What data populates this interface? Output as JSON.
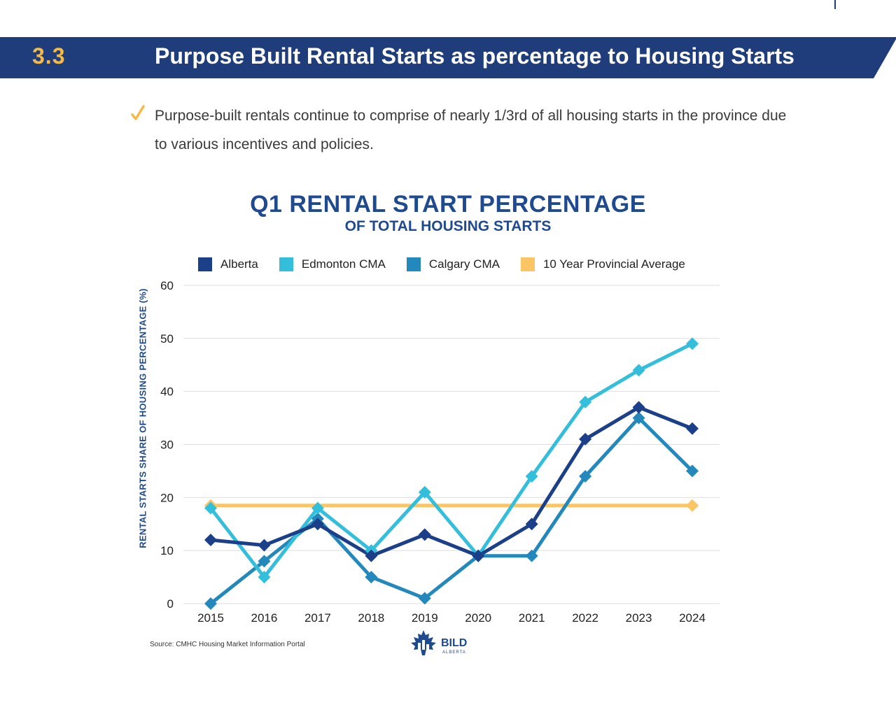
{
  "header": {
    "section_number": "3.3",
    "title": "Purpose Built Rental Starts as percentage to Housing Starts"
  },
  "bullet": {
    "text": "Purpose-built rentals continue to comprise of nearly 1/3rd of all housing starts in the province due to various incentives and policies."
  },
  "colors": {
    "header_navy": "#1f3d7a",
    "accent_gold": "#f5b945",
    "alberta": "#1c3f8a",
    "edmonton": "#33bedb",
    "calgary": "#2389bd",
    "average": "#fbc465"
  },
  "chart_data": {
    "type": "line",
    "title": "Q1 RENTAL START PERCENTAGE",
    "subtitle": "OF TOTAL HOUSING STARTS",
    "xlabel": "",
    "ylabel": "RENTAL STARTS SHARE OF HOUSING PERCENTAGE (%)",
    "x": [
      "2015",
      "2016",
      "2017",
      "2018",
      "2019",
      "2020",
      "2021",
      "2022",
      "2023",
      "2024"
    ],
    "yticks": [
      0,
      10,
      20,
      30,
      40,
      50,
      60
    ],
    "ylim": [
      0,
      60
    ],
    "grid": true,
    "legend_position": "top",
    "series": [
      {
        "name": "Alberta",
        "color": "#1c3f8a",
        "marker": "diamond",
        "values": [
          12,
          11,
          15,
          9,
          13,
          9,
          15,
          31,
          37,
          33
        ]
      },
      {
        "name": "Edmonton CMA",
        "color": "#33bedb",
        "marker": "diamond",
        "values": [
          18,
          5,
          18,
          10,
          21,
          9,
          24,
          38,
          44,
          49
        ]
      },
      {
        "name": "Calgary CMA",
        "color": "#2389bd",
        "marker": "diamond",
        "values": [
          0,
          8,
          16,
          5,
          1,
          9,
          9,
          24,
          35,
          25
        ]
      },
      {
        "name": "10 Year Provincial Average",
        "color": "#fbc465",
        "marker": "diamond-ends",
        "values": [
          18.5,
          18.5,
          18.5,
          18.5,
          18.5,
          18.5,
          18.5,
          18.5,
          18.5,
          18.5
        ]
      }
    ],
    "source": "Source: CMHC Housing Market Information Portal"
  },
  "logo": {
    "name": "BILD",
    "sub": "ALBERTA",
    "icon": "maple-leaf-icon"
  }
}
